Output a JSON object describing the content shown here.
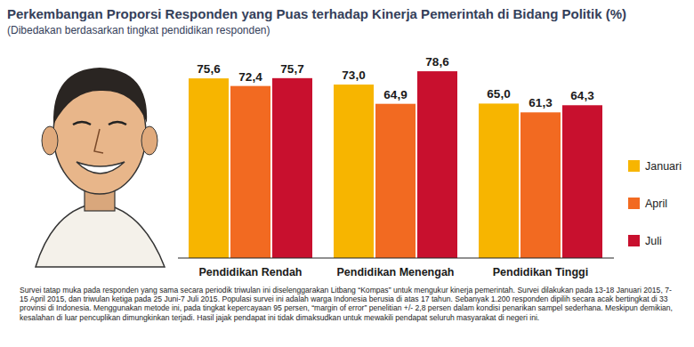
{
  "chart_data": {
    "type": "bar",
    "title": "Perkembangan Proporsi Responden yang Puas terhadap Kinerja Pemerintah di Bidang Politik (%)",
    "subtitle": "(Dibedakan berdasarkan tingkat pendidikan responden)",
    "categories": [
      "Pendidikan Rendah",
      "Pendidikan Menengah",
      "Pendidikan Tinggi"
    ],
    "series": [
      {
        "name": "Januari",
        "color": "#f7b500",
        "values": [
          75.6,
          73.0,
          65.0
        ],
        "value_labels": [
          "75,6",
          "73,0",
          "65,0"
        ]
      },
      {
        "name": "April",
        "color": "#f26a21",
        "values": [
          72.4,
          64.9,
          61.3
        ],
        "value_labels": [
          "72,4",
          "64,9",
          "61,3"
        ]
      },
      {
        "name": "Juli",
        "color": "#c8102e",
        "values": [
          75.7,
          78.6,
          64.3
        ],
        "value_labels": [
          "75,7",
          "78,6",
          "64,3"
        ]
      }
    ],
    "ylim": [
      0,
      85
    ],
    "grid": false,
    "data_labels": true,
    "tick_labels": "x",
    "legend": "right",
    "note": "Survei tatap muka pada responden yang sama secara periodik triwulan ini diselenggarakan Litbang “Kompas” untuk mengukur kinerja pemerintah. Survei dilakukan pada 13-18 Januari 2015, 7-15 April 2015, dan triwulan ketiga pada 25 Juni-7 Juli 2015. Populasi survei ini adalah warga Indonesia berusia di atas 17 tahun. Sebanyak 1.200 responden dipilih secara acak bertingkat di 33 provinsi di Indonesia. Menggunakan metode ini, pada tingkat kepercayaan 95 persen, “margin of error” penelitian +/- 2,8 persen dalam kondisi penarikan sampel sederhana. Meskipun demikian, kesalahan di luar pencuplikan dimungkinkan terjadi. Hasil jajak pendapat ini tidak dimaksudkan untuk mewakili pendapat seluruh masyarakat di negeri ini."
  }
}
